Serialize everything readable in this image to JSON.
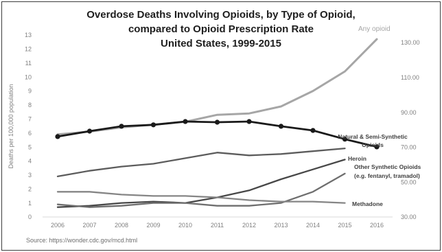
{
  "chart_data": {
    "type": "line",
    "title": [
      "Overdose Deaths Involving Opioids, by Type of Opioid,",
      "compared to Opioid Prescription Rate",
      "United States, 1999-2015"
    ],
    "xlabel": "",
    "ylabel": "Deaths per 100,000 population",
    "x": [
      2006,
      2007,
      2008,
      2009,
      2010,
      2011,
      2012,
      2013,
      2014,
      2015,
      2016
    ],
    "ylim": [
      0,
      13
    ],
    "yticks": [
      0,
      1,
      2,
      3,
      4,
      5,
      6,
      7,
      8,
      9,
      10,
      11,
      12,
      13
    ],
    "ylim_right": [
      30,
      134.3
    ],
    "yticks_right": [
      "30.00",
      "50.00",
      "70.00",
      "90.00",
      "110.00",
      "130.00"
    ],
    "grid": false,
    "series": [
      {
        "name": "Any opioid",
        "axis": "left",
        "color": "#a6a6a6",
        "values": [
          5.9,
          6.1,
          6.4,
          6.6,
          6.8,
          7.3,
          7.4,
          7.9,
          9.0,
          10.4,
          12.7
        ]
      },
      {
        "name": "Natural & Semi-Synthetic Opioids",
        "axis": "left",
        "color": "#5c5c5c",
        "values": [
          2.9,
          3.3,
          3.6,
          3.8,
          4.2,
          4.6,
          4.4,
          4.5,
          4.7,
          4.9,
          null
        ]
      },
      {
        "name": "Heroin",
        "axis": "left",
        "color": "#474747",
        "values": [
          0.7,
          0.8,
          1.0,
          1.1,
          1.0,
          1.4,
          1.9,
          2.7,
          3.4,
          4.1,
          null
        ]
      },
      {
        "name": "Other Synthetic Opioids (e.g. fentanyl, tramadol)",
        "axis": "left",
        "color": "#6e6e6e",
        "values": [
          0.9,
          0.7,
          0.8,
          1.0,
          1.0,
          0.8,
          0.8,
          1.0,
          1.8,
          3.1,
          null
        ]
      },
      {
        "name": "Methadone",
        "axis": "left",
        "color": "#858585",
        "values": [
          1.8,
          1.8,
          1.6,
          1.5,
          1.5,
          1.4,
          1.2,
          1.1,
          1.1,
          1.0,
          null
        ]
      },
      {
        "axis": "right",
        "color": "#1a1a1a",
        "marker": "circle",
        "values": [
          76.1,
          79.2,
          82.0,
          82.8,
          84.7,
          84.3,
          84.7,
          82.0,
          79.6,
          74.6,
          70.2
        ]
      }
    ],
    "source": "Source: https://wonder.cdc.gov/mcd.html"
  }
}
